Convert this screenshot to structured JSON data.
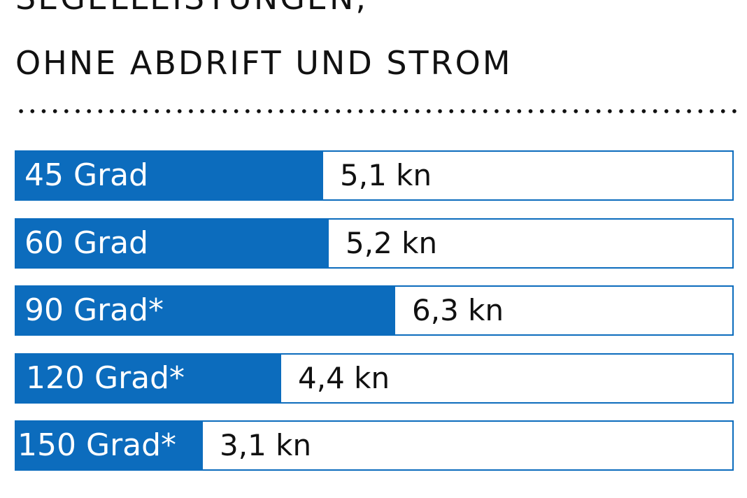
{
  "title": {
    "line1": "SEGELLEISTUNGEN,",
    "line2": "OHNE ABDRIFT UND STROM"
  },
  "colors": {
    "bar": "#0c6cbd",
    "text": "#111111",
    "background": "#ffffff"
  },
  "chart_data": {
    "type": "bar",
    "orientation": "horizontal",
    "categories": [
      "45 Grad",
      "60 Grad",
      "90 Grad*",
      "120 Grad*",
      "150 Grad*"
    ],
    "values": [
      5.1,
      5.2,
      6.3,
      4.4,
      3.1
    ],
    "value_labels": [
      "5,1 kn",
      "5,2 kn",
      "6,3 kn",
      "4,4 kn",
      "3,1 kn"
    ],
    "unit": "kn",
    "title": "SEGELLEISTUNGEN, OHNE ABDRIFT UND STROM",
    "xlabel": "",
    "ylabel": "",
    "xlim": [
      0,
      11.9
    ],
    "grid": false,
    "legend": "none"
  }
}
